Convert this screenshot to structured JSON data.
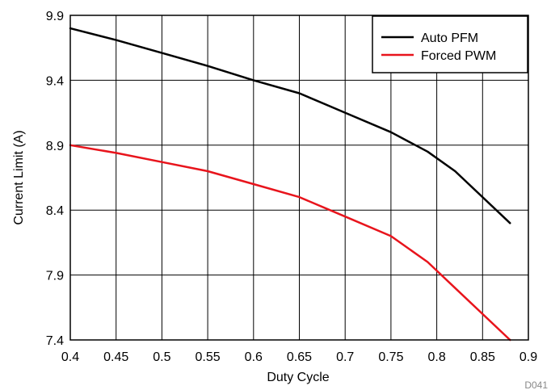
{
  "chart_data": {
    "type": "line",
    "xlabel": "Duty Cycle",
    "ylabel": "Current Limit (A)",
    "xlim": [
      0.4,
      0.9
    ],
    "ylim": [
      7.4,
      9.9
    ],
    "xticks": [
      0.4,
      0.45,
      0.5,
      0.55,
      0.6,
      0.65,
      0.7,
      0.75,
      0.8,
      0.85,
      0.9
    ],
    "yticks": [
      7.4,
      7.9,
      8.4,
      8.9,
      9.4,
      9.9
    ],
    "xtick_labels": [
      "0.4",
      "0.45",
      "0.5",
      "0.55",
      "0.6",
      "0.65",
      "0.7",
      "0.75",
      "0.8",
      "0.85",
      "0.9"
    ],
    "ytick_labels": [
      "7.4",
      "7.9",
      "8.4",
      "8.9",
      "9.4",
      "9.9"
    ],
    "grid": true,
    "legend_position": "top-right",
    "series": [
      {
        "name": "Auto PFM",
        "color": "#000000",
        "x": [
          0.4,
          0.45,
          0.5,
          0.55,
          0.6,
          0.65,
          0.7,
          0.75,
          0.79,
          0.82,
          0.88
        ],
        "y": [
          9.8,
          9.71,
          9.61,
          9.51,
          9.4,
          9.3,
          9.15,
          9.0,
          8.85,
          8.7,
          8.3
        ]
      },
      {
        "name": "Forced PWM",
        "color": "#e8141c",
        "x": [
          0.4,
          0.45,
          0.5,
          0.55,
          0.6,
          0.65,
          0.7,
          0.75,
          0.79,
          0.82,
          0.88
        ],
        "y": [
          8.9,
          8.84,
          8.77,
          8.7,
          8.6,
          8.5,
          8.35,
          8.2,
          8.0,
          7.8,
          7.4
        ]
      }
    ]
  },
  "figure_code": "D041"
}
